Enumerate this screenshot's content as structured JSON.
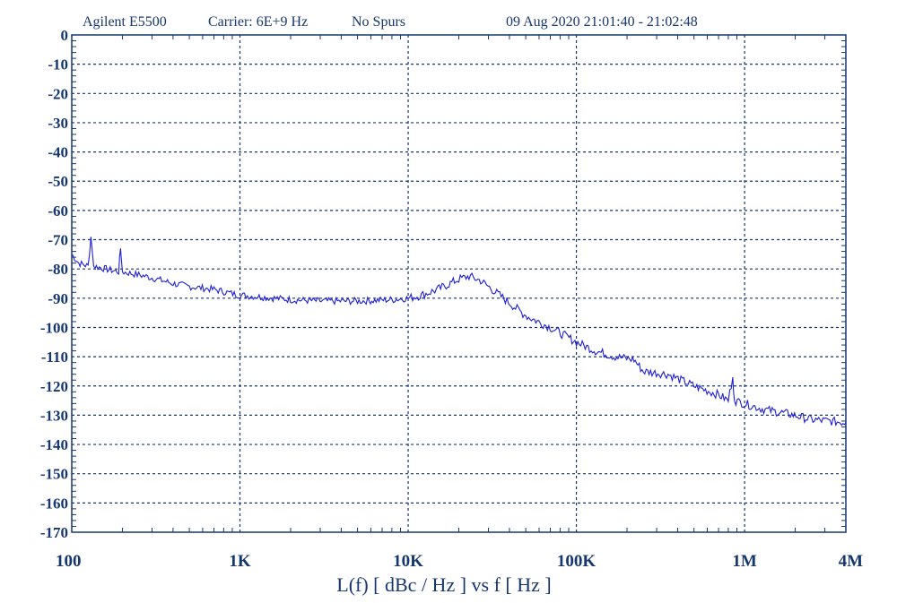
{
  "header": {
    "instrument": "Agilent E5500",
    "carrier": "Carrier: 6E+9 Hz",
    "spurs": "No Spurs",
    "datetime": "09 Aug 2020  21:01:40 - 21:02:48"
  },
  "chart_data": {
    "type": "line",
    "title": "",
    "xlabel": "L(f)  [ dBc / Hz ]  vs  f  [ Hz ]",
    "ylabel": "",
    "x_scale": "log",
    "xlim": [
      100,
      4000000
    ],
    "ylim": [
      -170,
      0
    ],
    "grid": true,
    "x_ticks": [
      {
        "value": 100,
        "label": "100"
      },
      {
        "value": 1000,
        "label": "1K"
      },
      {
        "value": 10000,
        "label": "10K"
      },
      {
        "value": 100000,
        "label": "100K"
      },
      {
        "value": 1000000,
        "label": "1M"
      },
      {
        "value": 4000000,
        "label": "4M"
      }
    ],
    "y_ticks": [
      0,
      -10,
      -20,
      -30,
      -40,
      -50,
      -60,
      -70,
      -80,
      -90,
      -100,
      -110,
      -120,
      -130,
      -140,
      -150,
      -160,
      -170
    ],
    "series": [
      {
        "color": "#1f1fd6",
        "points": [
          [
            100,
            -75
          ],
          [
            110,
            -78
          ],
          [
            125,
            -79
          ],
          [
            130,
            -69
          ],
          [
            135,
            -79
          ],
          [
            160,
            -80
          ],
          [
            190,
            -81
          ],
          [
            195,
            -73
          ],
          [
            200,
            -81
          ],
          [
            250,
            -82
          ],
          [
            300,
            -83
          ],
          [
            400,
            -85
          ],
          [
            500,
            -86
          ],
          [
            700,
            -87
          ],
          [
            1000,
            -89
          ],
          [
            1300,
            -89.5
          ],
          [
            1600,
            -90
          ],
          [
            2000,
            -90.5
          ],
          [
            3000,
            -91
          ],
          [
            5000,
            -91
          ],
          [
            8000,
            -90.5
          ],
          [
            10000,
            -90
          ],
          [
            12000,
            -89
          ],
          [
            15000,
            -87
          ],
          [
            20000,
            -83.5
          ],
          [
            23000,
            -82.5
          ],
          [
            27000,
            -84
          ],
          [
            35000,
            -89
          ],
          [
            50000,
            -96
          ],
          [
            70000,
            -100
          ],
          [
            100000,
            -105
          ],
          [
            130000,
            -108
          ],
          [
            170000,
            -110
          ],
          [
            220000,
            -111
          ],
          [
            250000,
            -115
          ],
          [
            350000,
            -116
          ],
          [
            500000,
            -120
          ],
          [
            700000,
            -123
          ],
          [
            800000,
            -125
          ],
          [
            850000,
            -117
          ],
          [
            870000,
            -125
          ],
          [
            1000000,
            -126
          ],
          [
            1300000,
            -128
          ],
          [
            1800000,
            -129.5
          ],
          [
            2500000,
            -131.5
          ],
          [
            4000000,
            -132.5
          ]
        ]
      }
    ]
  }
}
